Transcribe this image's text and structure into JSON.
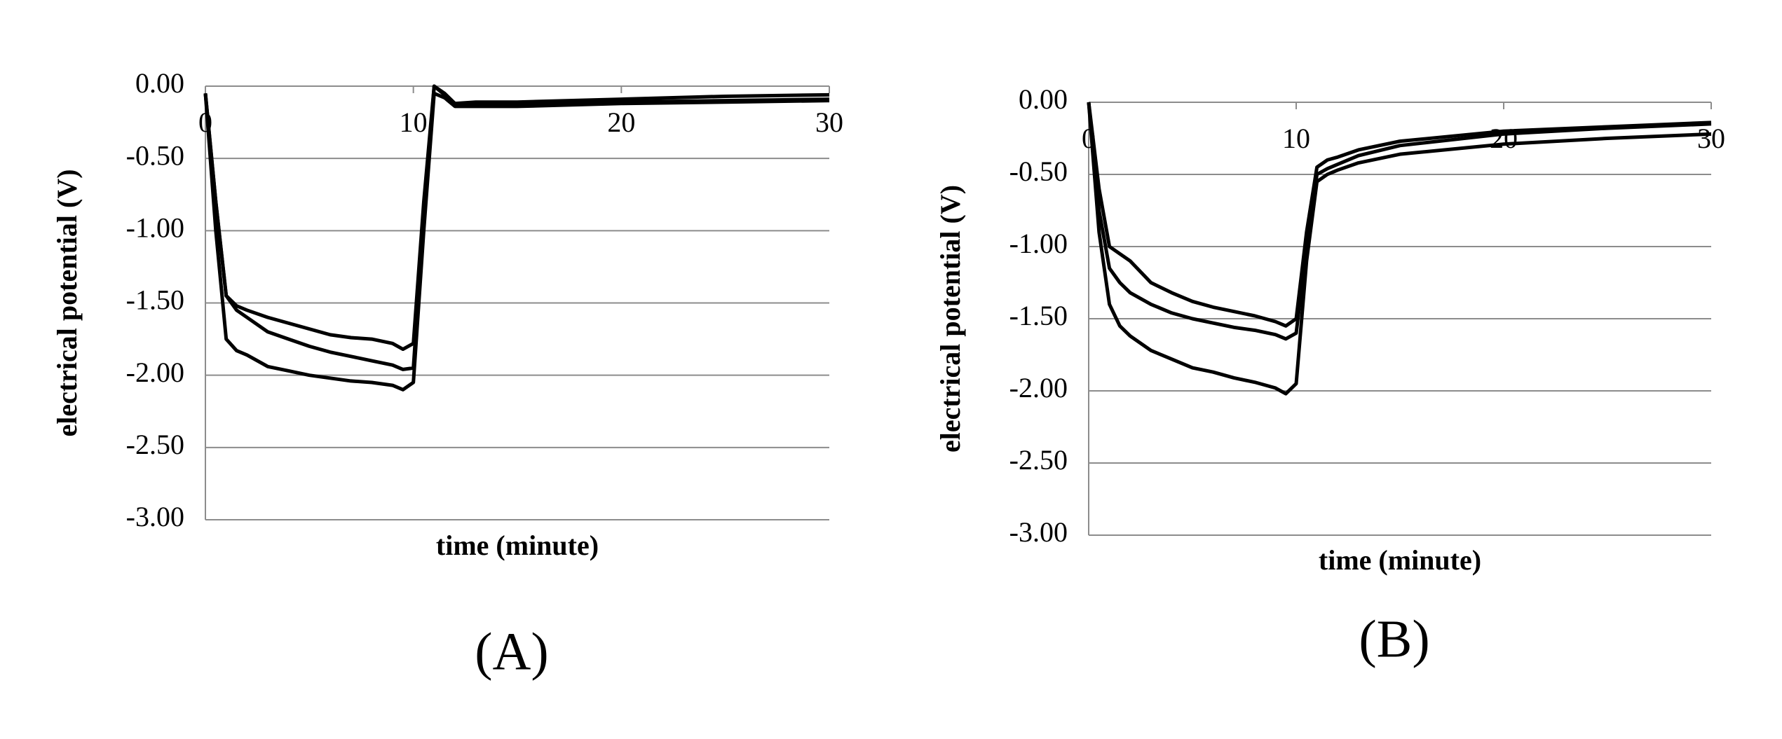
{
  "chart_data": [
    {
      "type": "line",
      "title": "(A)",
      "xlabel": "time (minute)",
      "ylabel": "electrical potential (V)",
      "x": [
        0,
        0.5,
        1,
        1.5,
        2,
        3,
        4,
        5,
        6,
        7,
        8,
        9,
        9.5,
        10,
        10.5,
        11,
        11.5,
        12,
        13,
        15,
        20,
        25,
        30
      ],
      "series": [
        {
          "color": "#000000",
          "values": [
            -0.05,
            -0.8,
            -1.45,
            -1.52,
            -1.55,
            -1.6,
            -1.64,
            -1.68,
            -1.72,
            -1.74,
            -1.75,
            -1.78,
            -1.82,
            -1.78,
            -0.8,
            0.0,
            -0.05,
            -0.12,
            -0.11,
            -0.11,
            -0.09,
            -0.07,
            -0.06
          ]
        },
        {
          "color": "#000000",
          "values": [
            -0.05,
            -0.8,
            -1.45,
            -1.55,
            -1.6,
            -1.7,
            -1.75,
            -1.8,
            -1.84,
            -1.87,
            -1.9,
            -1.93,
            -1.96,
            -1.95,
            -0.9,
            0.0,
            -0.06,
            -0.13,
            -0.13,
            -0.13,
            -0.11,
            -0.1,
            -0.09
          ]
        },
        {
          "color": "#000000",
          "values": [
            -0.05,
            -1.0,
            -1.75,
            -1.83,
            -1.86,
            -1.94,
            -1.97,
            -2.0,
            -2.02,
            -2.04,
            -2.05,
            -2.07,
            -2.1,
            -2.05,
            -1.0,
            -0.05,
            -0.08,
            -0.14,
            -0.14,
            -0.14,
            -0.12,
            -0.11,
            -0.1
          ]
        }
      ],
      "xlim": [
        0,
        30
      ],
      "xticks": [
        0,
        10,
        20,
        30
      ],
      "ylim": [
        -3,
        0
      ],
      "yticks": [
        {
          "value": 0,
          "label": "0.00"
        },
        {
          "value": -0.5,
          "label": "-0.50"
        },
        {
          "value": -1,
          "label": "-1.00"
        },
        {
          "value": -1.5,
          "label": "-1.50"
        },
        {
          "value": -2,
          "label": "-2.00"
        },
        {
          "value": -2.5,
          "label": "-2.50"
        },
        {
          "value": -3,
          "label": "-3.00"
        }
      ],
      "grid": true
    },
    {
      "type": "line",
      "title": "(B)",
      "xlabel": "time (minute)",
      "ylabel": "electrical potential (V)",
      "x": [
        0,
        0.5,
        1,
        1.5,
        2,
        3,
        4,
        5,
        6,
        7,
        8,
        9,
        9.5,
        10,
        10.5,
        11,
        11.5,
        12,
        13,
        15,
        20,
        25,
        30
      ],
      "series": [
        {
          "color": "#000000",
          "values": [
            0,
            -0.6,
            -1.0,
            -1.05,
            -1.1,
            -1.25,
            -1.32,
            -1.38,
            -1.42,
            -1.45,
            -1.48,
            -1.52,
            -1.55,
            -1.5,
            -0.9,
            -0.45,
            -0.4,
            -0.38,
            -0.33,
            -0.27,
            -0.2,
            -0.17,
            -0.14
          ]
        },
        {
          "color": "#000000",
          "values": [
            0,
            -0.75,
            -1.15,
            -1.25,
            -1.32,
            -1.4,
            -1.46,
            -1.5,
            -1.53,
            -1.56,
            -1.58,
            -1.61,
            -1.64,
            -1.6,
            -1.0,
            -0.5,
            -0.46,
            -0.43,
            -0.37,
            -0.3,
            -0.22,
            -0.18,
            -0.15
          ]
        },
        {
          "color": "#000000",
          "values": [
            0,
            -0.9,
            -1.4,
            -1.55,
            -1.62,
            -1.72,
            -1.78,
            -1.84,
            -1.87,
            -1.91,
            -1.94,
            -1.98,
            -2.02,
            -1.95,
            -1.1,
            -0.55,
            -0.5,
            -0.47,
            -0.42,
            -0.36,
            -0.29,
            -0.25,
            -0.22
          ]
        }
      ],
      "xlim": [
        0,
        30
      ],
      "xticks": [
        0,
        10,
        20,
        30
      ],
      "ylim": [
        -3,
        0
      ],
      "yticks": [
        {
          "value": 0,
          "label": "0.00"
        },
        {
          "value": -0.5,
          "label": "-0.50"
        },
        {
          "value": -1,
          "label": "-1.00"
        },
        {
          "value": -1.5,
          "label": "-1.50"
        },
        {
          "value": -2,
          "label": "-2.00"
        },
        {
          "value": -2.5,
          "label": "-2.50"
        },
        {
          "value": -3,
          "label": "-3.00"
        }
      ],
      "grid": true
    }
  ]
}
